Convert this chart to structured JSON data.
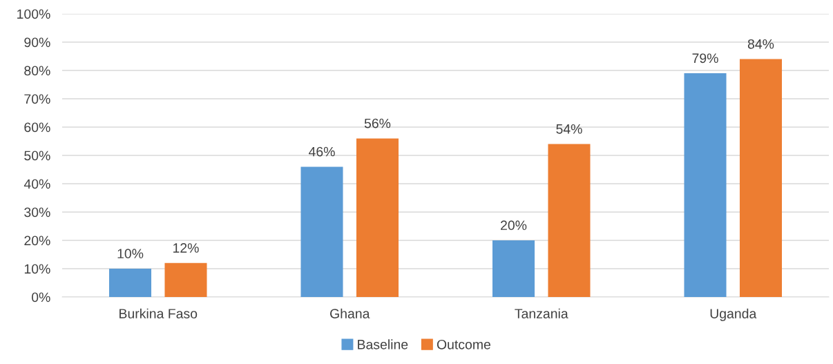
{
  "chart_data": {
    "type": "bar",
    "categories": [
      "Burkina Faso",
      "Ghana",
      "Tanzania",
      "Uganda"
    ],
    "series": [
      {
        "name": "Baseline",
        "color": "#5b9bd5",
        "values": [
          10,
          46,
          20,
          79
        ],
        "value_labels": [
          "10%",
          "46%",
          "20%",
          "79%"
        ]
      },
      {
        "name": "Outcome",
        "color": "#ed7d31",
        "values": [
          12,
          56,
          54,
          84
        ],
        "value_labels": [
          "12%",
          "56%",
          "54%",
          "84%"
        ]
      }
    ],
    "ylim": [
      0,
      100
    ],
    "yticks": [
      {
        "value": 0,
        "label": "0%"
      },
      {
        "value": 10,
        "label": "10%"
      },
      {
        "value": 20,
        "label": "20%"
      },
      {
        "value": 30,
        "label": "30%"
      },
      {
        "value": 40,
        "label": "40%"
      },
      {
        "value": 50,
        "label": "50%"
      },
      {
        "value": 60,
        "label": "60%"
      },
      {
        "value": 70,
        "label": "70%"
      },
      {
        "value": 80,
        "label": "80%"
      },
      {
        "value": 90,
        "label": "90%"
      },
      {
        "value": 100,
        "label": "100%"
      }
    ],
    "grid": "y",
    "legend": "bottom"
  }
}
